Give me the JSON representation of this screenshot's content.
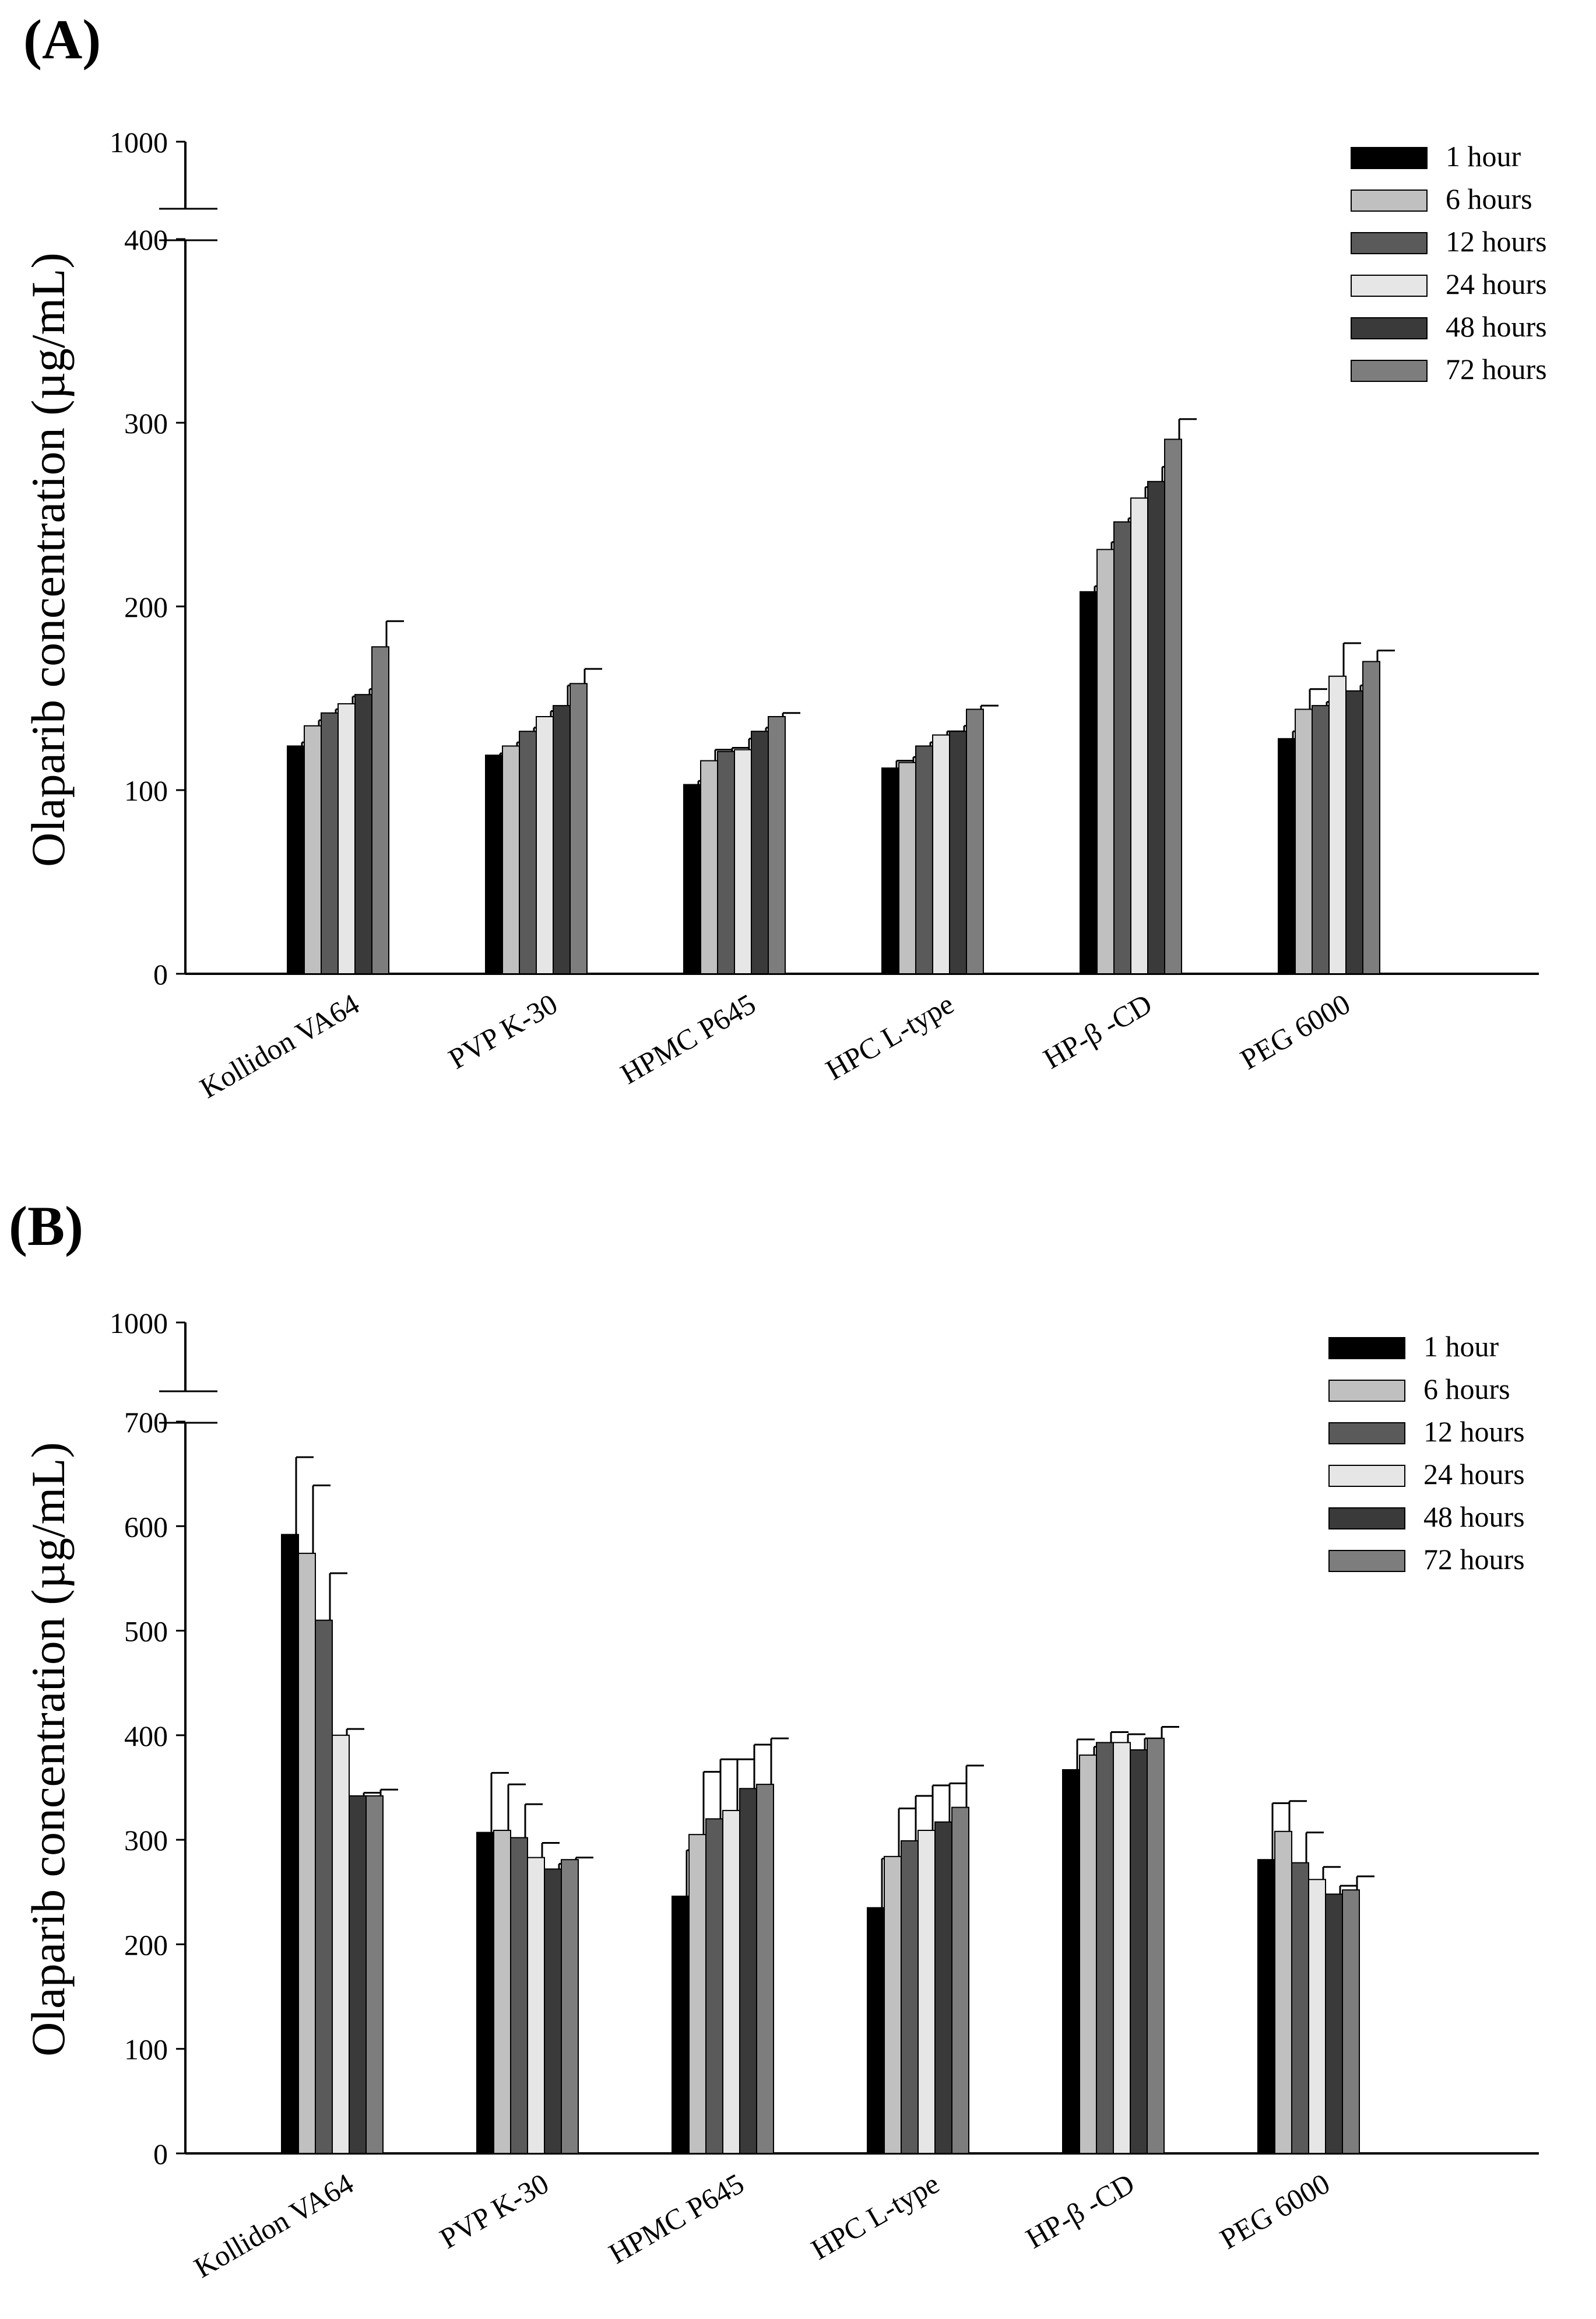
{
  "figure": {
    "background": "#ffffff"
  },
  "chart_data": [
    {
      "panel": "(A)",
      "type": "bar",
      "ylabel": "Olaparib concentration (µg/mL)",
      "xlabel": "",
      "axis_break": {
        "lower": 400,
        "upper": 1000
      },
      "ylim": [
        0,
        400
      ],
      "yticks": [
        "0",
        "100",
        "200",
        "300",
        "400",
        "1000"
      ],
      "legend_position": "top-right",
      "categories": [
        "Kollidon VA64",
        "PVP K-30",
        "HPMC P645",
        "HPC L-type",
        "HP-β -CD",
        "PEG 6000"
      ],
      "series": [
        {
          "name": "1 hour",
          "color": "#000000",
          "values": [
            124,
            119,
            103,
            112,
            208,
            128
          ],
          "errors": [
            2,
            1,
            2,
            4,
            3,
            4
          ]
        },
        {
          "name": "6 hours",
          "color": "#c0c0c0",
          "values": [
            135,
            124,
            116,
            115,
            231,
            144
          ],
          "errors": [
            3,
            2,
            6,
            3,
            4,
            11
          ]
        },
        {
          "name": "12 hours",
          "color": "#5a5a5a",
          "values": [
            142,
            132,
            121,
            124,
            246,
            146
          ],
          "errors": [
            2,
            2,
            2,
            2,
            2,
            2
          ]
        },
        {
          "name": "24 hours",
          "color": "#e6e6e6",
          "values": [
            147,
            140,
            122,
            130,
            259,
            162
          ],
          "errors": [
            4,
            3,
            6,
            2,
            6,
            18
          ]
        },
        {
          "name": "48 hours",
          "color": "#3a3a3a",
          "values": [
            152,
            146,
            132,
            132,
            268,
            154
          ],
          "errors": [
            3,
            11,
            2,
            3,
            8,
            3
          ]
        },
        {
          "name": "72 hours",
          "color": "#7d7d7d",
          "values": [
            178,
            158,
            140,
            144,
            291,
            170
          ],
          "errors": [
            14,
            8,
            2,
            2,
            11,
            6
          ]
        }
      ]
    },
    {
      "panel": "(B)",
      "type": "bar",
      "ylabel": "Olaparib concentration (µg/mL)",
      "xlabel": "",
      "axis_break": {
        "lower": 700,
        "upper": 1000
      },
      "ylim": [
        0,
        700
      ],
      "yticks": [
        "0",
        "100",
        "200",
        "300",
        "400",
        "500",
        "600",
        "700",
        "1000"
      ],
      "legend_position": "top-right",
      "categories": [
        "Kollidon VA64",
        "PVP K-30",
        "HPMC P645",
        "HPC L-type",
        "HP-β -CD",
        "PEG 6000"
      ],
      "series": [
        {
          "name": "1 hour",
          "color": "#000000",
          "values": [
            592,
            307,
            246,
            235,
            367,
            281
          ],
          "errors": [
            74,
            57,
            44,
            47,
            29,
            54
          ]
        },
        {
          "name": "6 hours",
          "color": "#c0c0c0",
          "values": [
            574,
            309,
            305,
            284,
            381,
            308
          ],
          "errors": [
            65,
            44,
            60,
            46,
            8,
            29
          ]
        },
        {
          "name": "12 hours",
          "color": "#5a5a5a",
          "values": [
            510,
            302,
            320,
            299,
            393,
            278
          ],
          "errors": [
            45,
            32,
            57,
            43,
            10,
            29
          ]
        },
        {
          "name": "24 hours",
          "color": "#e6e6e6",
          "values": [
            400,
            283,
            328,
            309,
            393,
            262
          ],
          "errors": [
            6,
            14,
            49,
            43,
            8,
            12
          ]
        },
        {
          "name": "48 hours",
          "color": "#3a3a3a",
          "values": [
            342,
            272,
            349,
            317,
            386,
            248
          ],
          "errors": [
            3,
            5,
            42,
            37,
            11,
            8
          ]
        },
        {
          "name": "72 hours",
          "color": "#7d7d7d",
          "values": [
            342,
            281,
            353,
            331,
            397,
            252
          ],
          "errors": [
            6,
            2,
            44,
            40,
            11,
            13
          ]
        }
      ]
    }
  ]
}
